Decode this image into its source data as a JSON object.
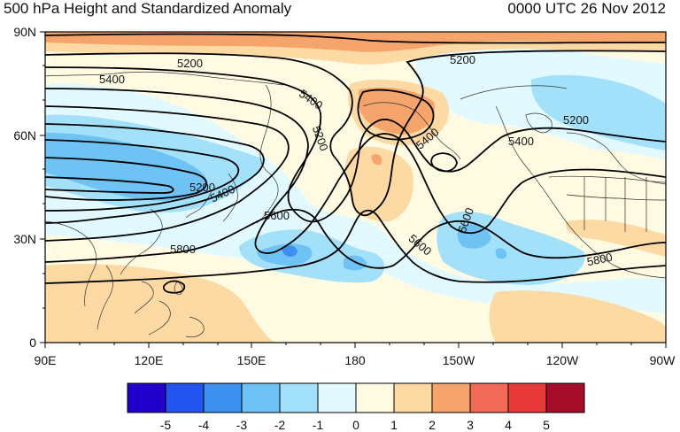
{
  "title_left": "500 hPa Height and Standardized Anomaly",
  "title_right": "0000 UTC 26 Nov 2012",
  "lat_labels": [
    "90N",
    "60N",
    "30N",
    "0"
  ],
  "lon_labels": [
    "90E",
    "120E",
    "150E",
    "180",
    "150W",
    "120W",
    "90W"
  ],
  "contour_labels": [
    "5200",
    "5400",
    "5200",
    "5400",
    "5200",
    "5400",
    "5200",
    "5400",
    "5400",
    "5200",
    "5600",
    "5800",
    "5600",
    "5600",
    "5800"
  ],
  "colorbar": {
    "colors": [
      "#2200cc",
      "#2255ee",
      "#3d8ff0",
      "#6fc3f4",
      "#a3e0fa",
      "#e2faff",
      "#fffbe3",
      "#fdd9a3",
      "#f5a46c",
      "#f06a57",
      "#e83a3a",
      "#a60d2a"
    ],
    "labels": [
      "-5",
      "-4",
      "-3",
      "-2",
      "-1",
      "0",
      "1",
      "2",
      "3",
      "4",
      "5"
    ]
  }
}
